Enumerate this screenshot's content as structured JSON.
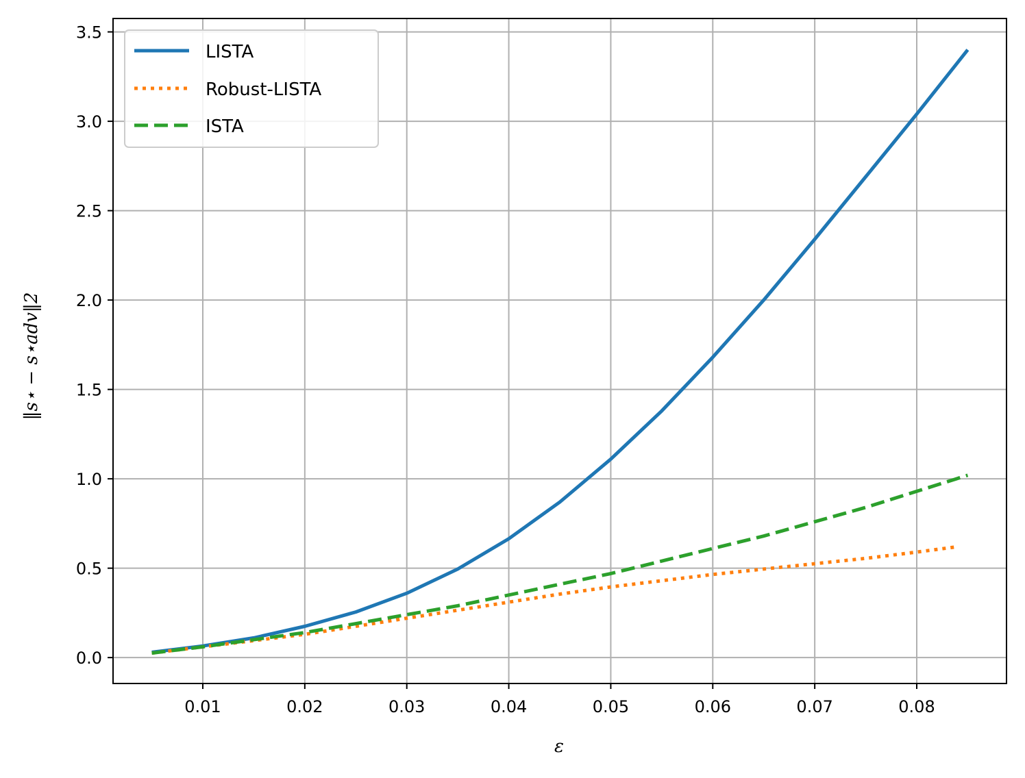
{
  "chart_data": {
    "type": "line",
    "title": "",
    "xlabel": "ε",
    "ylabel": "‖s⋆ − s⋆adv‖2",
    "xlim": [
      0.0012,
      0.0888
    ],
    "ylim": [
      -0.145,
      3.575
    ],
    "x_ticks": [
      0.01,
      0.02,
      0.03,
      0.04,
      0.05,
      0.06,
      0.07,
      0.08
    ],
    "x_tick_labels": [
      "0.01",
      "0.02",
      "0.03",
      "0.04",
      "0.05",
      "0.06",
      "0.07",
      "0.08"
    ],
    "y_ticks": [
      0.0,
      0.5,
      1.0,
      1.5,
      2.0,
      2.5,
      3.0,
      3.5
    ],
    "y_tick_labels": [
      "0.0",
      "0.5",
      "1.0",
      "1.5",
      "2.0",
      "2.5",
      "3.0",
      "3.5"
    ],
    "grid": true,
    "legend_position": "top-left",
    "series": [
      {
        "name": "LISTA",
        "color": "#1f77b4",
        "style": "solid",
        "x": [
          0.005,
          0.01,
          0.015,
          0.02,
          0.025,
          0.03,
          0.035,
          0.04,
          0.045,
          0.05,
          0.055,
          0.06,
          0.065,
          0.07,
          0.075,
          0.08,
          0.085
        ],
        "y": [
          0.03,
          0.065,
          0.11,
          0.175,
          0.255,
          0.36,
          0.495,
          0.665,
          0.87,
          1.11,
          1.38,
          1.68,
          2.0,
          2.34,
          2.69,
          3.04,
          3.4
        ]
      },
      {
        "name": "Robust-LISTA",
        "color": "#ff7f0e",
        "style": "dotted",
        "x": [
          0.005,
          0.01,
          0.015,
          0.02,
          0.025,
          0.03,
          0.035,
          0.04,
          0.045,
          0.05,
          0.055,
          0.06,
          0.065,
          0.07,
          0.075,
          0.08,
          0.084
        ],
        "y": [
          0.025,
          0.06,
          0.095,
          0.13,
          0.175,
          0.22,
          0.265,
          0.31,
          0.355,
          0.395,
          0.43,
          0.465,
          0.495,
          0.525,
          0.555,
          0.59,
          0.62
        ]
      },
      {
        "name": "ISTA",
        "color": "#2ca02c",
        "style": "dashed",
        "x": [
          0.005,
          0.01,
          0.015,
          0.02,
          0.025,
          0.03,
          0.035,
          0.04,
          0.045,
          0.05,
          0.055,
          0.06,
          0.065,
          0.07,
          0.075,
          0.08,
          0.085
        ],
        "y": [
          0.025,
          0.06,
          0.1,
          0.14,
          0.19,
          0.24,
          0.29,
          0.35,
          0.41,
          0.47,
          0.54,
          0.61,
          0.68,
          0.76,
          0.84,
          0.93,
          1.02
        ]
      }
    ]
  }
}
